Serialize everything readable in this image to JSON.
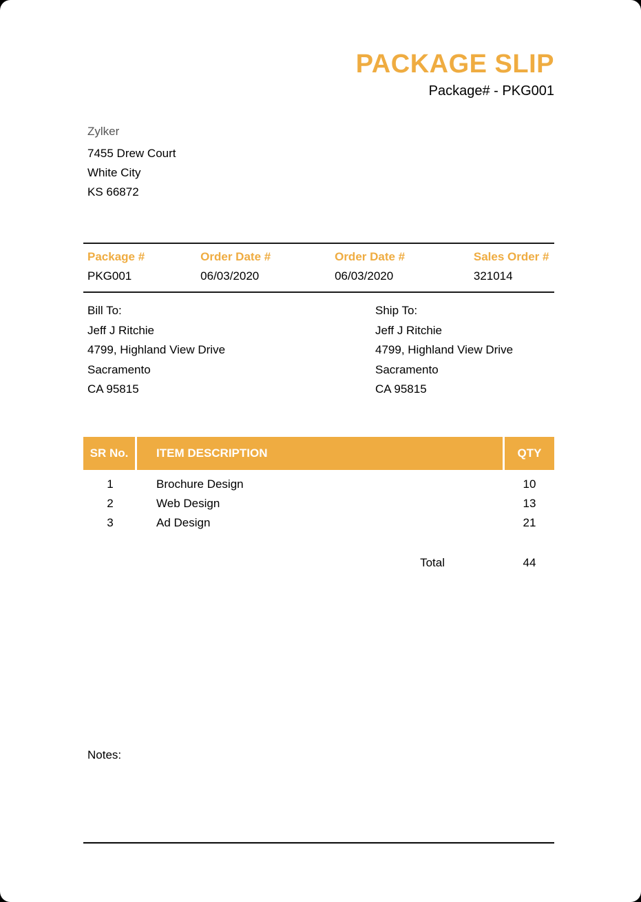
{
  "colors": {
    "accent": "#EFAC41",
    "text": "#000000",
    "muted": "#555555",
    "rule": "#1A1A1A",
    "page_bg": "#FFFFFF",
    "canvas_bg": "#000000",
    "header_text": "#FFFFFF"
  },
  "header": {
    "title": "PACKAGE SLIP",
    "package_number_line": "Package# - PKG001"
  },
  "company": {
    "name": "Zylker",
    "address_lines": [
      "7455 Drew Court",
      "White City",
      "KS 66872"
    ]
  },
  "meta_table": {
    "columns": [
      {
        "label": "Package #",
        "value": "PKG001"
      },
      {
        "label": "Order Date #",
        "value": "06/03/2020"
      },
      {
        "label": "Order Date #",
        "value": "06/03/2020"
      },
      {
        "label": "Sales Order #",
        "value": "321014"
      }
    ]
  },
  "bill_to": {
    "label": "Bill To:",
    "lines": [
      "Jeff J Ritchie",
      "4799, Highland View Drive",
      "Sacramento",
      "CA 95815"
    ]
  },
  "ship_to": {
    "label": "Ship To:",
    "lines": [
      "Jeff J Ritchie",
      "4799, Highland View Drive",
      "Sacramento",
      "CA 95815"
    ]
  },
  "items_table": {
    "headers": {
      "sr": "SR No.",
      "description": "ITEM DESCRIPTION",
      "qty": "QTY"
    },
    "rows": [
      {
        "sr": "1",
        "description": "Brochure Design",
        "qty": "10"
      },
      {
        "sr": "2",
        "description": "Web Design",
        "qty": "13"
      },
      {
        "sr": "3",
        "description": "Ad Design",
        "qty": "21"
      }
    ],
    "total_label": "Total",
    "total_qty": "44"
  },
  "notes_label": "Notes:"
}
